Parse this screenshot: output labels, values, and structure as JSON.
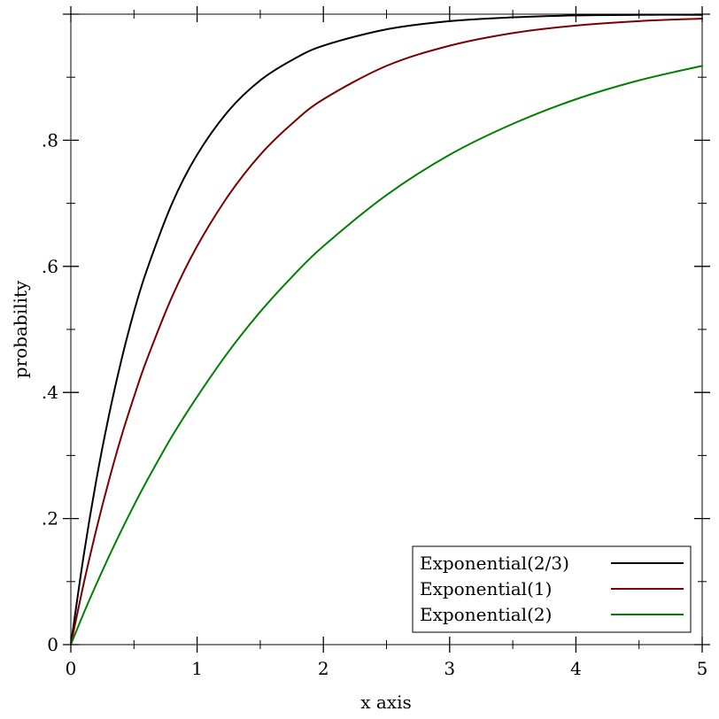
{
  "chart_data": {
    "type": "line",
    "title": "",
    "xlabel": "x axis",
    "ylabel": "probability",
    "xlim": [
      0,
      5
    ],
    "ylim": [
      0,
      1
    ],
    "x_ticks": [
      0,
      1,
      2,
      3,
      4,
      5
    ],
    "x_tick_labels": [
      "0",
      "1",
      "2",
      "3",
      "4",
      "5"
    ],
    "x_minor_ticks": [
      0.5,
      1.5,
      2.5,
      3.5,
      4.5
    ],
    "y_ticks": [
      0,
      0.2,
      0.4,
      0.6,
      0.8,
      1.0
    ],
    "y_tick_labels": [
      "0",
      ".2",
      ".4",
      ".6",
      ".8",
      ""
    ],
    "y_minor_ticks": [
      0.1,
      0.3,
      0.5,
      0.7,
      0.9
    ],
    "grid": false,
    "legend_position": "bottom-right",
    "series": [
      {
        "name": "Exponential(2/3)",
        "color": "#000000",
        "x": [
          0,
          0.1,
          0.2,
          0.3,
          0.4,
          0.5,
          0.6,
          0.8,
          1.0,
          1.25,
          1.5,
          1.75,
          2.0,
          2.5,
          3.0,
          3.5,
          4.0,
          4.5,
          5.0
        ],
        "y": [
          0,
          0.139,
          0.259,
          0.362,
          0.451,
          0.528,
          0.593,
          0.699,
          0.777,
          0.847,
          0.895,
          0.927,
          0.95,
          0.976,
          0.989,
          0.995,
          0.998,
          0.999,
          0.999
        ]
      },
      {
        "name": "Exponential(1)",
        "color": "#7a0000",
        "x": [
          0,
          0.1,
          0.2,
          0.3,
          0.4,
          0.5,
          0.6,
          0.8,
          1.0,
          1.25,
          1.5,
          1.75,
          2.0,
          2.5,
          3.0,
          3.5,
          4.0,
          4.5,
          5.0
        ],
        "y": [
          0,
          0.095,
          0.181,
          0.259,
          0.33,
          0.393,
          0.451,
          0.551,
          0.632,
          0.713,
          0.777,
          0.826,
          0.865,
          0.918,
          0.95,
          0.97,
          0.982,
          0.989,
          0.993
        ]
      },
      {
        "name": "Exponential(2)",
        "color": "#008000",
        "x": [
          0,
          0.1,
          0.2,
          0.3,
          0.4,
          0.5,
          0.6,
          0.8,
          1.0,
          1.25,
          1.5,
          1.75,
          2.0,
          2.5,
          3.0,
          3.5,
          4.0,
          4.5,
          5.0
        ],
        "y": [
          0,
          0.049,
          0.095,
          0.139,
          0.181,
          0.221,
          0.259,
          0.33,
          0.393,
          0.465,
          0.528,
          0.583,
          0.632,
          0.713,
          0.777,
          0.826,
          0.865,
          0.895,
          0.918
        ]
      }
    ]
  }
}
